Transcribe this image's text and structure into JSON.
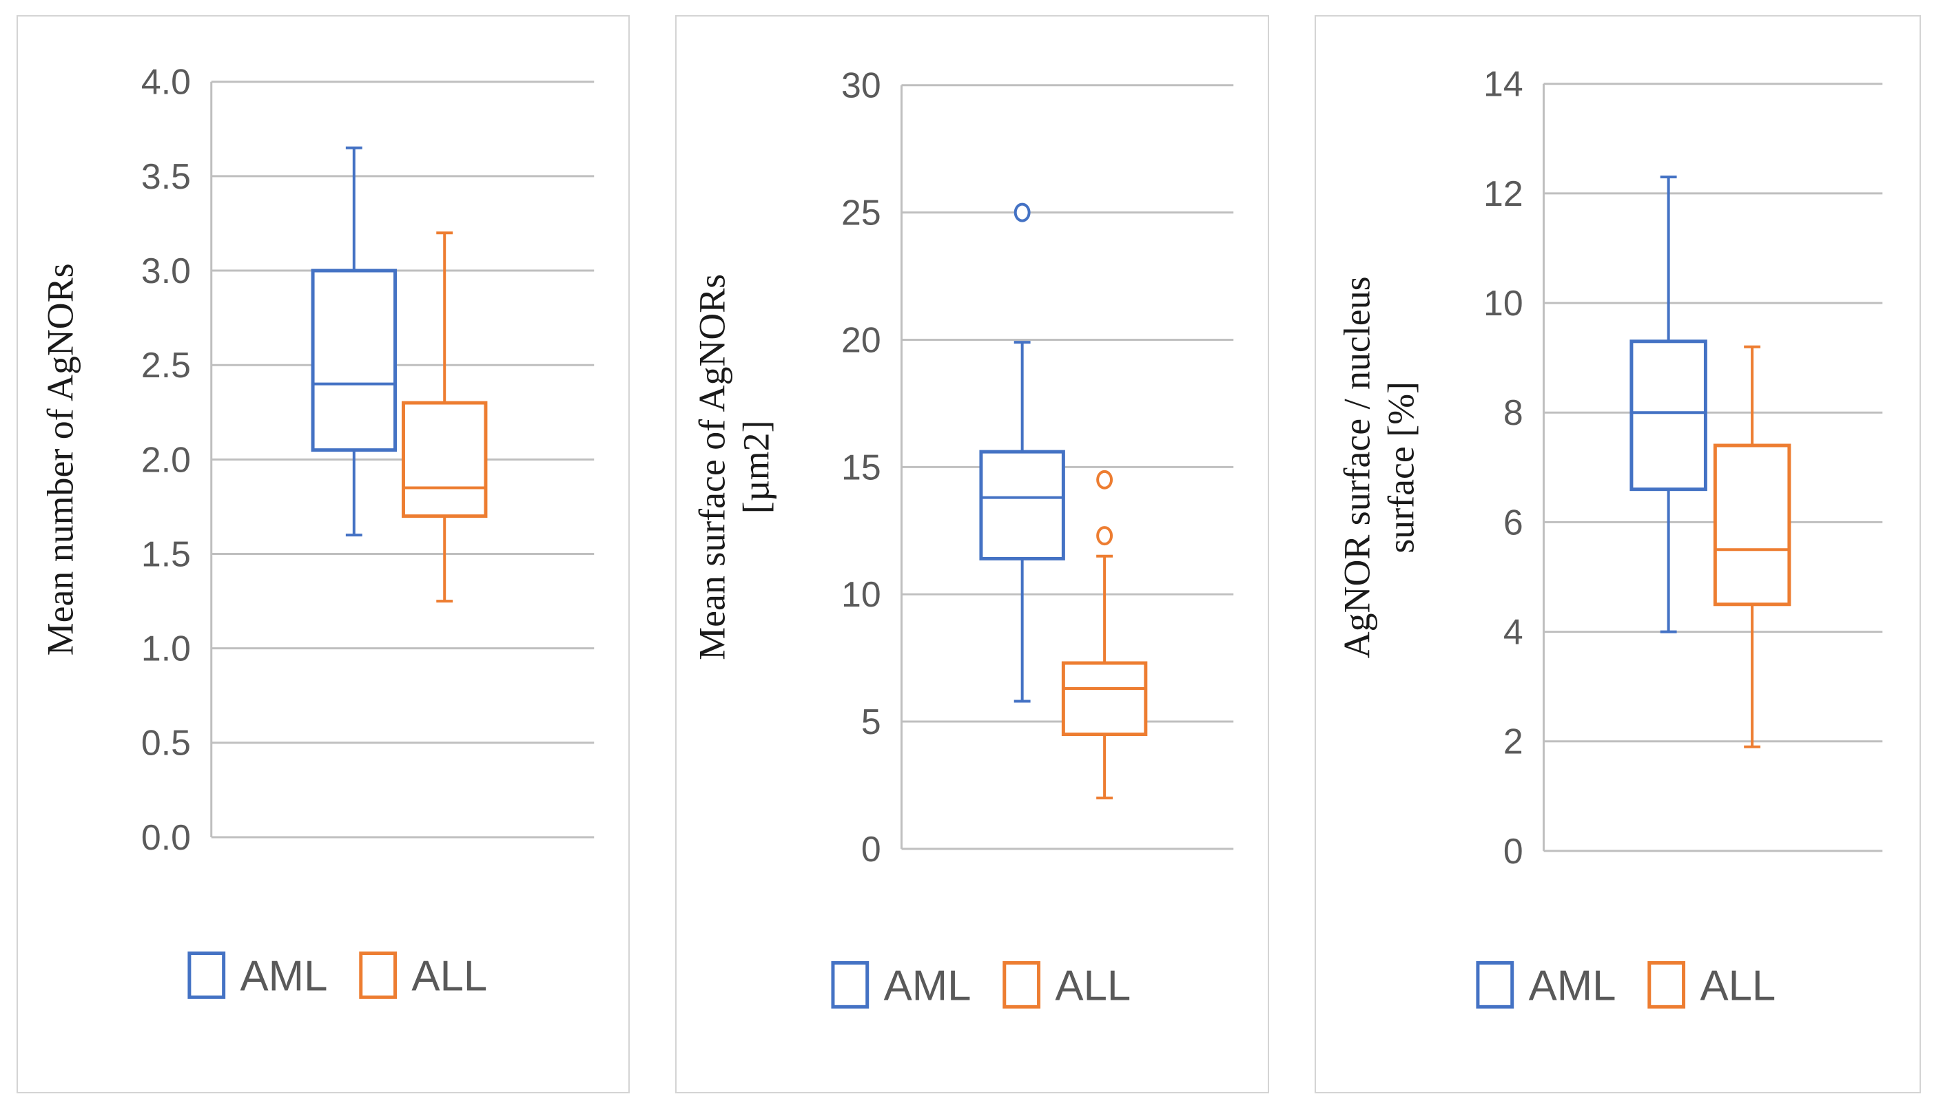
{
  "colors": {
    "AML": "#4472c4",
    "ALL": "#ed7d31",
    "grid": "#bfbfbf",
    "axis": "#bfbfbf"
  },
  "chart_data": [
    {
      "type": "box",
      "ylabel": [
        "Mean number of AgNORs"
      ],
      "ylim": [
        0,
        4.0
      ],
      "yticks": [
        0,
        0.5,
        1.0,
        1.5,
        2.0,
        2.5,
        3.0,
        3.5,
        4.0
      ],
      "ytick_labels": [
        "0.0",
        "0.5",
        "1.0",
        "1.5",
        "2.0",
        "2.5",
        "3.0",
        "3.5",
        "4.0"
      ],
      "legend": [
        "AML",
        "ALL"
      ],
      "series": [
        {
          "name": "AML",
          "whisker_low": 1.6,
          "q1": 2.05,
          "median": 2.4,
          "q3": 3.0,
          "whisker_high": 3.65,
          "outliers": []
        },
        {
          "name": "ALL",
          "whisker_low": 1.25,
          "q1": 1.7,
          "median": 1.85,
          "q3": 2.3,
          "whisker_high": 3.2,
          "outliers": []
        }
      ]
    },
    {
      "type": "box",
      "ylabel": [
        "Mean surface of AgNORs",
        "[µm2]"
      ],
      "ylim": [
        0,
        30
      ],
      "yticks": [
        0,
        5,
        10,
        15,
        20,
        25,
        30
      ],
      "ytick_labels": [
        "0",
        "5",
        "10",
        "15",
        "20",
        "25",
        "30"
      ],
      "legend": [
        "AML",
        "ALL"
      ],
      "series": [
        {
          "name": "AML",
          "whisker_low": 5.8,
          "q1": 11.4,
          "median": 13.8,
          "q3": 15.6,
          "whisker_high": 19.9,
          "outliers": [
            25.0
          ]
        },
        {
          "name": "ALL",
          "whisker_low": 2.0,
          "q1": 4.5,
          "median": 6.3,
          "q3": 7.3,
          "whisker_high": 11.5,
          "outliers": [
            12.3,
            14.5
          ]
        }
      ]
    },
    {
      "type": "box",
      "ylabel": [
        "AgNOR surface / nucleus",
        "surface [%]"
      ],
      "ylim": [
        0,
        14
      ],
      "yticks": [
        0,
        2,
        4,
        6,
        8,
        10,
        12,
        14
      ],
      "ytick_labels": [
        "0",
        "2",
        "4",
        "6",
        "8",
        "10",
        "12",
        "14"
      ],
      "legend": [
        "AML",
        "ALL"
      ],
      "series": [
        {
          "name": "AML",
          "whisker_low": 4.0,
          "q1": 6.6,
          "median": 8.0,
          "q3": 9.3,
          "whisker_high": 12.3,
          "outliers": []
        },
        {
          "name": "ALL",
          "whisker_low": 1.9,
          "q1": 4.5,
          "median": 5.5,
          "q3": 7.4,
          "whisker_high": 9.2,
          "outliers": []
        }
      ]
    }
  ]
}
